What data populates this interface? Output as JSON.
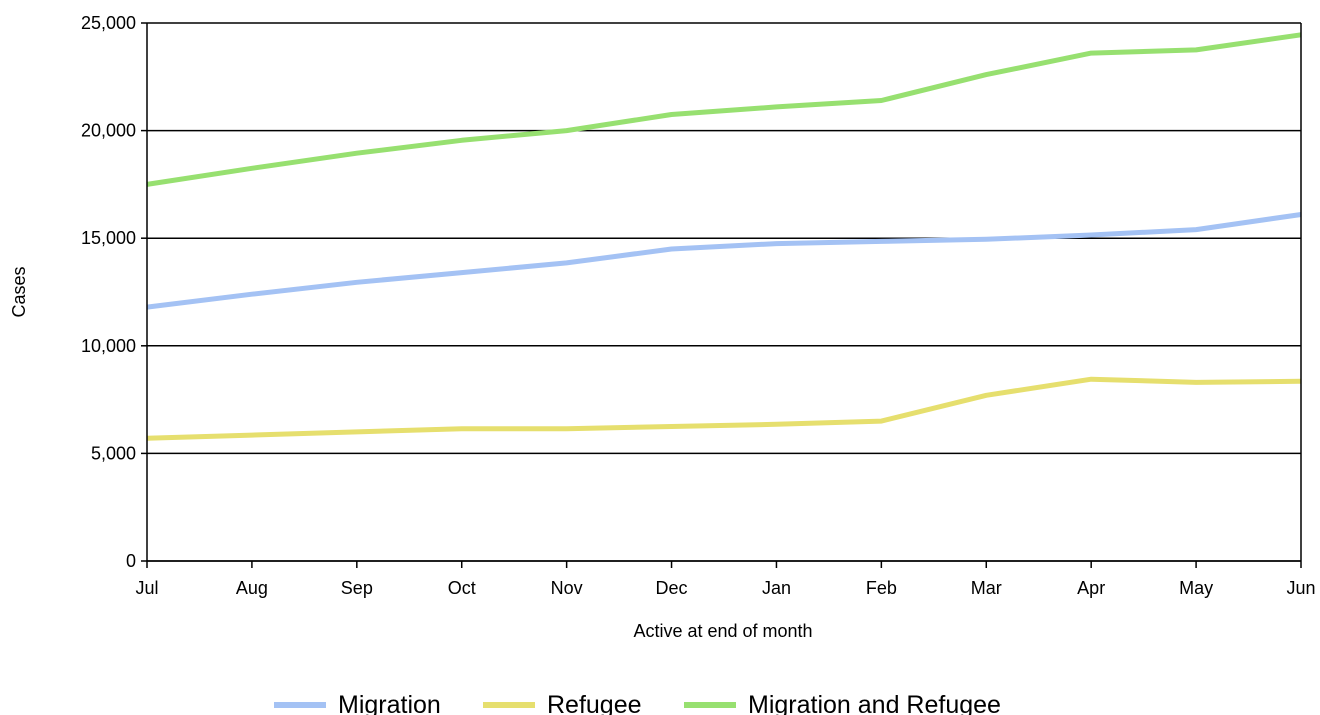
{
  "chart_data": {
    "type": "line",
    "title": "",
    "xlabel": "Active at end of month",
    "ylabel": "Cases",
    "categories": [
      "Jul",
      "Aug",
      "Sep",
      "Oct",
      "Nov",
      "Dec",
      "Jan",
      "Feb",
      "Mar",
      "Apr",
      "May",
      "Jun"
    ],
    "ylim": [
      0,
      25000
    ],
    "yticks": [
      0,
      5000,
      10000,
      15000,
      20000,
      25000
    ],
    "ytick_labels": [
      "0",
      "5,000",
      "10,000",
      "15,000",
      "20,000",
      "25,000"
    ],
    "grid": "horizontal",
    "legend_position": "bottom-center",
    "series": [
      {
        "name": "Migration",
        "color": "#a4c2f4",
        "values": [
          11800,
          12400,
          12950,
          13400,
          13850,
          14500,
          14750,
          14850,
          14950,
          15150,
          15400,
          16100
        ]
      },
      {
        "name": "Refugee",
        "color": "#e6df6e",
        "values": [
          5700,
          5850,
          6000,
          6150,
          6150,
          6250,
          6350,
          6500,
          7700,
          8450,
          8300,
          8350
        ]
      },
      {
        "name": "Migration and Refugee",
        "color": "#97e070",
        "values": [
          17500,
          18250,
          18950,
          19550,
          20000,
          20750,
          21100,
          21400,
          22600,
          23600,
          23750,
          24450
        ]
      }
    ]
  }
}
